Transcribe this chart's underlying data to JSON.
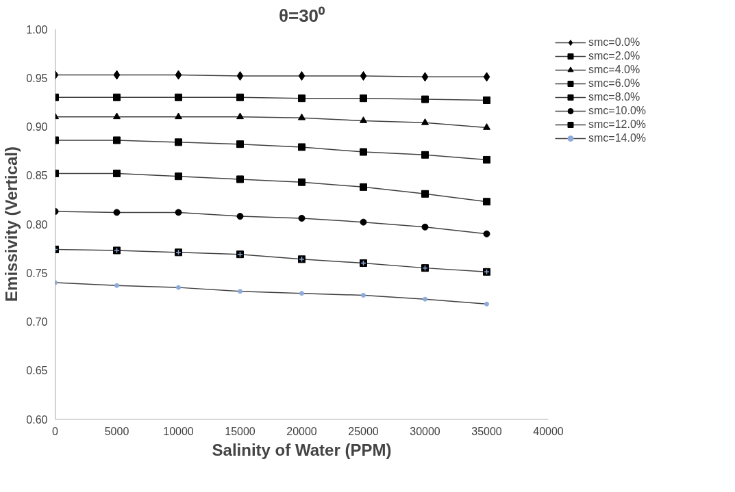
{
  "chart_data": {
    "type": "line",
    "title": "θ=30⁰",
    "xlabel": "Salinity of Water (PPM)",
    "ylabel": "Emissivity (Vertical)",
    "x": [
      0,
      5000,
      10000,
      15000,
      20000,
      25000,
      30000,
      35000
    ],
    "series": [
      {
        "name": "smc=0.0%",
        "color": "#000000",
        "marker": "diamond",
        "values": [
          0.953,
          0.953,
          0.953,
          0.952,
          0.952,
          0.952,
          0.951,
          0.951
        ]
      },
      {
        "name": "smc=2.0%",
        "color": "#000000",
        "marker": "square",
        "values": [
          0.93,
          0.93,
          0.93,
          0.93,
          0.929,
          0.929,
          0.928,
          0.927
        ]
      },
      {
        "name": "smc=4.0%",
        "color": "#000000",
        "marker": "triangle",
        "values": [
          0.91,
          0.91,
          0.91,
          0.91,
          0.909,
          0.906,
          0.904,
          0.899
        ]
      },
      {
        "name": "smc=6.0%",
        "color": "#000000",
        "marker": "square",
        "values": [
          0.886,
          0.886,
          0.884,
          0.882,
          0.879,
          0.874,
          0.871,
          0.866
        ]
      },
      {
        "name": "smc=8.0%",
        "color": "#000000",
        "marker": "square",
        "values": [
          0.852,
          0.852,
          0.849,
          0.846,
          0.843,
          0.838,
          0.831,
          0.823
        ]
      },
      {
        "name": "smc=10.0%",
        "color": "#000000",
        "marker": "circle",
        "values": [
          0.813,
          0.812,
          0.812,
          0.808,
          0.806,
          0.802,
          0.797,
          0.79
        ]
      },
      {
        "name": "smc=12.0%",
        "color": "#000000",
        "marker": "cross",
        "values": [
          0.774,
          0.773,
          0.771,
          0.769,
          0.764,
          0.76,
          0.755,
          0.751
        ]
      },
      {
        "name": "smc=14.0%",
        "color": "#8eaadb",
        "marker": "circle",
        "values": [
          0.74,
          0.737,
          0.735,
          0.731,
          0.729,
          0.727,
          0.723,
          0.718
        ]
      }
    ],
    "xlim": [
      0,
      40000
    ],
    "xticks": [
      0,
      5000,
      10000,
      15000,
      20000,
      25000,
      30000,
      35000,
      40000
    ],
    "ylim": [
      0.6,
      1.0
    ],
    "yticks": [
      {
        "value": 0.6,
        "label": "0.60"
      },
      {
        "value": 0.65,
        "label": "0.65"
      },
      {
        "value": 0.7,
        "label": "0.70"
      },
      {
        "value": 0.75,
        "label": "0.75"
      },
      {
        "value": 0.8,
        "label": "0.80"
      },
      {
        "value": 0.85,
        "label": "0.85"
      },
      {
        "value": 0.9,
        "label": "0.90"
      },
      {
        "value": 0.95,
        "label": "0.95"
      },
      {
        "value": 1.0,
        "label": "1.00"
      }
    ],
    "grid": false,
    "legend": "top right",
    "line_style": "solid"
  }
}
